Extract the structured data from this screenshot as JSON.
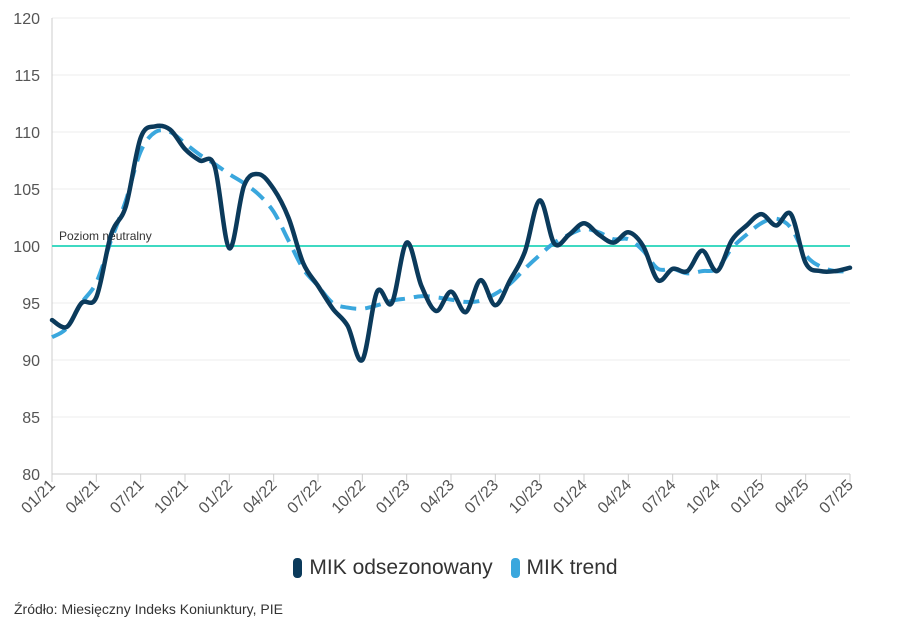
{
  "chart_data": {
    "type": "line",
    "ylim": [
      80,
      120
    ],
    "yticks": [
      80,
      85,
      90,
      95,
      100,
      105,
      110,
      115,
      120
    ],
    "xlim": [
      "2021-01",
      "2025-07"
    ],
    "xtick_labels": [
      "01/21",
      "04/21",
      "07/21",
      "10/21",
      "01/22",
      "04/22",
      "07/22",
      "10/22",
      "01/23",
      "04/23",
      "07/23",
      "10/23",
      "01/24",
      "04/24",
      "07/24",
      "10/24",
      "01/25",
      "04/25",
      "07/25"
    ],
    "reference_line": {
      "value": 100,
      "label": "Poziom neutralny",
      "color": "#3fd9c2"
    },
    "legend_position": "bottom",
    "series": [
      {
        "name": "MIK odsezonowany",
        "color": "#0b3a5b",
        "style": "solid",
        "x": [
          "2021-01",
          "2021-02",
          "2021-03",
          "2021-04",
          "2021-05",
          "2021-06",
          "2021-07",
          "2021-08",
          "2021-09",
          "2021-10",
          "2021-11",
          "2021-12",
          "2022-01",
          "2022-02",
          "2022-03",
          "2022-04",
          "2022-05",
          "2022-06",
          "2022-07",
          "2022-08",
          "2022-09",
          "2022-10",
          "2022-11",
          "2022-12",
          "2023-01",
          "2023-02",
          "2023-03",
          "2023-04",
          "2023-05",
          "2023-06",
          "2023-07",
          "2023-08",
          "2023-09",
          "2023-10",
          "2023-11",
          "2023-12",
          "2024-01",
          "2024-02",
          "2024-03",
          "2024-04",
          "2024-05",
          "2024-06",
          "2024-07",
          "2024-08",
          "2024-09",
          "2024-10",
          "2024-11",
          "2024-12",
          "2025-01",
          "2025-02",
          "2025-03",
          "2025-04",
          "2025-05",
          "2025-06",
          "2025-07"
        ],
        "y": [
          93.5,
          92.9,
          95.0,
          95.5,
          101.0,
          103.5,
          109.5,
          110.5,
          110.2,
          108.5,
          107.5,
          107.0,
          99.8,
          105.3,
          106.3,
          105.0,
          102.5,
          98.5,
          96.5,
          94.5,
          93.0,
          90.0,
          96.0,
          95.0,
          100.3,
          96.5,
          94.3,
          96.0,
          94.2,
          97.0,
          94.8,
          97.0,
          99.5,
          104.0,
          100.2,
          101.0,
          102.0,
          101.0,
          100.3,
          101.2,
          100.0,
          97.0,
          98.0,
          97.8,
          99.6,
          97.8,
          100.5,
          101.8,
          102.8,
          101.8,
          102.8,
          98.5,
          97.8,
          97.8,
          98.1
        ]
      },
      {
        "name": "MIK trend",
        "color": "#3aa7dd",
        "style": "dashed",
        "x": [
          "2021-01",
          "2021-02",
          "2021-03",
          "2021-04",
          "2021-05",
          "2021-06",
          "2021-07",
          "2021-08",
          "2021-09",
          "2021-10",
          "2021-11",
          "2021-12",
          "2022-01",
          "2022-02",
          "2022-03",
          "2022-04",
          "2022-05",
          "2022-06",
          "2022-07",
          "2022-08",
          "2022-09",
          "2022-10",
          "2022-11",
          "2022-12",
          "2023-01",
          "2023-02",
          "2023-03",
          "2023-04",
          "2023-05",
          "2023-06",
          "2023-07",
          "2023-08",
          "2023-09",
          "2023-10",
          "2023-11",
          "2023-12",
          "2024-01",
          "2024-02",
          "2024-03",
          "2024-04",
          "2024-05",
          "2024-06",
          "2024-07",
          "2024-08",
          "2024-09",
          "2024-10",
          "2024-11",
          "2024-12",
          "2025-01",
          "2025-02",
          "2025-03",
          "2025-04",
          "2025-05",
          "2025-06",
          "2025-07"
        ],
        "y": [
          92.0,
          92.8,
          95.0,
          96.8,
          100.5,
          104.0,
          108.3,
          110.0,
          110.0,
          109.0,
          108.0,
          107.2,
          106.3,
          105.5,
          104.5,
          103.0,
          100.5,
          98.0,
          96.5,
          95.0,
          94.6,
          94.5,
          94.8,
          95.2,
          95.4,
          95.6,
          95.5,
          95.3,
          95.1,
          95.2,
          95.8,
          96.7,
          98.0,
          99.2,
          100.3,
          101.0,
          101.5,
          101.2,
          100.6,
          100.6,
          99.6,
          98.0,
          98.0,
          97.6,
          97.8,
          98.0,
          99.8,
          101.0,
          102.0,
          102.4,
          101.6,
          99.2,
          98.2,
          97.8,
          97.8
        ]
      }
    ]
  },
  "source_text": "Źródło: Miesięczny Indeks Koniunktury, PIE"
}
